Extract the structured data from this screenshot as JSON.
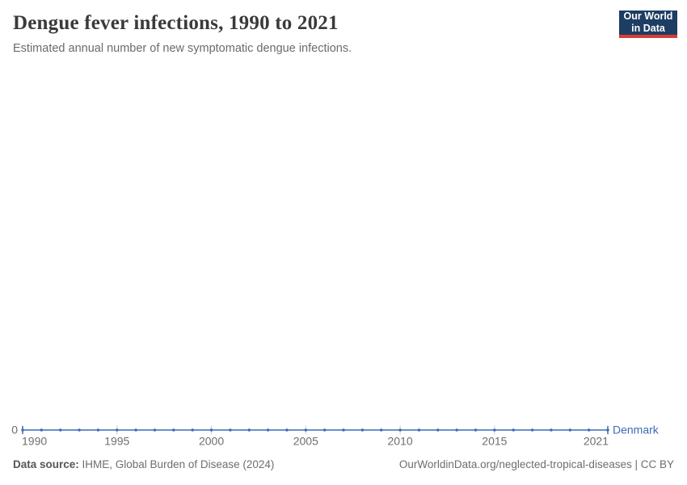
{
  "header": {
    "title": "Dengue fever infections, 1990 to 2021",
    "subtitle": "Estimated annual number of new symptomatic dengue infections.",
    "logo": {
      "line1": "Our World",
      "line2": "in Data"
    }
  },
  "chart_data": {
    "type": "line",
    "title": "Dengue fever infections, 1990 to 2021",
    "xlabel": "",
    "ylabel": "",
    "x": [
      1990,
      1991,
      1992,
      1993,
      1994,
      1995,
      1996,
      1997,
      1998,
      1999,
      2000,
      2001,
      2002,
      2003,
      2004,
      2005,
      2006,
      2007,
      2008,
      2009,
      2010,
      2011,
      2012,
      2013,
      2014,
      2015,
      2016,
      2017,
      2018,
      2019,
      2020,
      2021
    ],
    "series": [
      {
        "name": "Denmark",
        "values": [
          0,
          0,
          0,
          0,
          0,
          0,
          0,
          0,
          0,
          0,
          0,
          0,
          0,
          0,
          0,
          0,
          0,
          0,
          0,
          0,
          0,
          0,
          0,
          0,
          0,
          0,
          0,
          0,
          0,
          0,
          0,
          0
        ]
      }
    ],
    "x_range": [
      1990,
      2021
    ],
    "x_ticks": [
      1990,
      1995,
      2000,
      2005,
      2010,
      2015,
      2021
    ],
    "x_tick_labels": [
      "1990",
      "1995",
      "2000",
      "2005",
      "2010",
      "2015",
      "2021"
    ],
    "y_axis": {
      "min": 0,
      "tick_labels": [
        "0"
      ]
    },
    "grid": false,
    "legend_position": "end-of-line"
  },
  "footer": {
    "datasource_label": "Data source:",
    "datasource_value": " IHME, Global Burden of Disease (2024)",
    "credit": "OurWorldinData.org/neglected-tropical-diseases | CC BY"
  },
  "colors": {
    "line": "#3d6bb5",
    "tick": "#c9c9c9",
    "axis_text": "#6e6e6e",
    "logo_bg": "#1d3d63",
    "logo_red": "#d73c34"
  }
}
